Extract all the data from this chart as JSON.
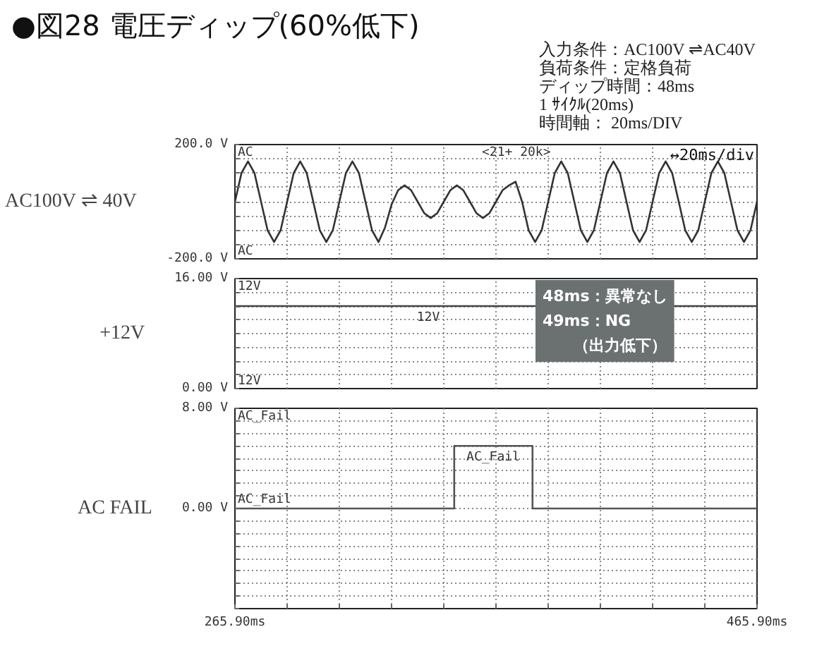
{
  "chart_data": [
    {
      "type": "line",
      "title": "●図28 電圧ディップ(60%低下)",
      "ylabel": "AC100V ⇌ 40V",
      "annotations": [
        "入力条件：AC100V ⇌AC40V",
        "負荷条件：定格負荷",
        "ディップ時間：48ms",
        "1 ｻｲｸﾙ(20ms)",
        "時間軸：  20ms/DIV",
        "AC",
        "<21+ 20k>",
        "↔20ms/div",
        "AC"
      ],
      "x": [
        265.9,
        268.4,
        270.9,
        273.4,
        275.9,
        278.4,
        280.9,
        283.4,
        285.9,
        288.4,
        290.9,
        293.4,
        295.9,
        298.4,
        300.9,
        303.4,
        305.9,
        308.4,
        310.9,
        313.4,
        315.9,
        318.4,
        320.9,
        323.4,
        325.9,
        328.4,
        330.9,
        333.4,
        335.9,
        338.4,
        340.9,
        343.4,
        345.9,
        348.4,
        350.9,
        353.4,
        355.9,
        358.4,
        360.9,
        363.4,
        365.9,
        368.4,
        370.9,
        373.4,
        375.9,
        378.4,
        380.9,
        383.4,
        385.9,
        388.4,
        390.9,
        393.4,
        395.9,
        398.4,
        400.9,
        403.4,
        405.9,
        408.4,
        410.9,
        413.4,
        415.9,
        418.4,
        420.9,
        423.4,
        425.9,
        428.4,
        430.9,
        433.4,
        435.9,
        438.4,
        440.9,
        443.4,
        445.9,
        448.4,
        450.9,
        453.4,
        455.9,
        458.4,
        460.9,
        463.4,
        465.9
      ],
      "series": [
        {
          "color": "#333333",
          "values": [
            0,
            100,
            141,
            100,
            0,
            -100,
            -141,
            -100,
            0,
            100,
            141,
            100,
            0,
            -100,
            -141,
            -100,
            0,
            100,
            141,
            100,
            0,
            -100,
            -141,
            -90,
            -10,
            40,
            57,
            40,
            0,
            -40,
            -57,
            -40,
            0,
            40,
            57,
            40,
            0,
            -40,
            -57,
            -40,
            0,
            40,
            57,
            70,
            0,
            -100,
            -141,
            -100,
            0,
            100,
            141,
            100,
            0,
            -100,
            -141,
            -100,
            0,
            100,
            141,
            100,
            0,
            -100,
            -141,
            -100,
            0,
            100,
            141,
            100,
            0,
            -100,
            -141,
            -100,
            0,
            100,
            141,
            100,
            0,
            -100,
            -141,
            -100,
            0
          ]
        }
      ],
      "xlim": [
        265.9,
        465.9
      ],
      "xticks": [
        {
          "value": 265.9,
          "label": null
        },
        {
          "value": 285.9,
          "label": null
        },
        {
          "value": 305.9,
          "label": null
        },
        {
          "value": 325.9,
          "label": null
        },
        {
          "value": 345.9,
          "label": null
        },
        {
          "value": 365.9,
          "label": null
        },
        {
          "value": 385.9,
          "label": null
        },
        {
          "value": 405.9,
          "label": null
        },
        {
          "value": 425.9,
          "label": null
        },
        {
          "value": 445.9,
          "label": null
        },
        {
          "value": 465.9,
          "label": null
        }
      ],
      "ylim": [
        -200,
        200
      ],
      "yticks": [
        {
          "value": -200,
          "label": "-200.0 V"
        },
        {
          "value": -150,
          "label": null
        },
        {
          "value": -100,
          "label": null
        },
        {
          "value": -50,
          "label": null
        },
        {
          "value": 0,
          "label": null
        },
        {
          "value": 50,
          "label": null
        },
        {
          "value": 100,
          "label": null
        },
        {
          "value": 150,
          "label": null
        },
        {
          "value": 200,
          "label": "200.0 V"
        }
      ],
      "grid": true,
      "tick_labels": "y"
    },
    {
      "type": "line",
      "ylabel": "+12V",
      "annotations": [
        "12V",
        "12V",
        "12V",
        "48ms：異常なし\n49ms：NG\n　　（出力低下）"
      ],
      "x": [
        265.9,
        465.9
      ],
      "series": [
        {
          "color": "#444444",
          "values": [
            12,
            12
          ]
        }
      ],
      "xlim": [
        265.9,
        465.9
      ],
      "xticks": [
        {
          "value": 265.9,
          "label": null
        },
        {
          "value": 285.9,
          "label": null
        },
        {
          "value": 305.9,
          "label": null
        },
        {
          "value": 325.9,
          "label": null
        },
        {
          "value": 345.9,
          "label": null
        },
        {
          "value": 365.9,
          "label": null
        },
        {
          "value": 385.9,
          "label": null
        },
        {
          "value": 405.9,
          "label": null
        },
        {
          "value": 425.9,
          "label": null
        },
        {
          "value": 445.9,
          "label": null
        },
        {
          "value": 465.9,
          "label": null
        }
      ],
      "ylim": [
        0,
        16
      ],
      "yticks": [
        {
          "value": 0,
          "label": "0.00 V"
        },
        {
          "value": 2,
          "label": null
        },
        {
          "value": 4,
          "label": null
        },
        {
          "value": 6,
          "label": null
        },
        {
          "value": 8,
          "label": null
        },
        {
          "value": 10,
          "label": null
        },
        {
          "value": 12,
          "label": null
        },
        {
          "value": 14,
          "label": null
        },
        {
          "value": 16,
          "label": "16.00 V"
        }
      ],
      "grid": true,
      "tick_labels": "y"
    },
    {
      "type": "line",
      "ylabel": "AC FAIL",
      "annotations": [
        "AC_Fail",
        "AC_Fail",
        "AC_Fail"
      ],
      "x": [
        265.9,
        349.9,
        349.9,
        379.9,
        379.9,
        465.9
      ],
      "series": [
        {
          "color": "#555555",
          "values": [
            0,
            0,
            5,
            5,
            0,
            0
          ]
        }
      ],
      "xlim": [
        265.9,
        465.9
      ],
      "xticks": [
        {
          "value": 265.9,
          "label": "265.90ms"
        },
        {
          "value": 285.9,
          "label": null
        },
        {
          "value": 305.9,
          "label": null
        },
        {
          "value": 325.9,
          "label": null
        },
        {
          "value": 345.9,
          "label": null
        },
        {
          "value": 365.9,
          "label": null
        },
        {
          "value": 385.9,
          "label": null
        },
        {
          "value": 405.9,
          "label": null
        },
        {
          "value": 425.9,
          "label": null
        },
        {
          "value": 445.9,
          "label": null
        },
        {
          "value": 465.9,
          "label": "465.90ms"
        }
      ],
      "ylim": [
        -8,
        8
      ],
      "yticks": [
        {
          "value": -8,
          "label": null
        },
        {
          "value": -7,
          "label": null
        },
        {
          "value": -6,
          "label": null
        },
        {
          "value": -5,
          "label": null
        },
        {
          "value": -4,
          "label": null
        },
        {
          "value": -3,
          "label": null
        },
        {
          "value": -2,
          "label": null
        },
        {
          "value": -1,
          "label": null
        },
        {
          "value": 0,
          "label": "0.00 V"
        },
        {
          "value": 1,
          "label": null
        },
        {
          "value": 2,
          "label": null
        },
        {
          "value": 3,
          "label": null
        },
        {
          "value": 4,
          "label": null
        },
        {
          "value": 5,
          "label": null
        },
        {
          "value": 6,
          "label": null
        },
        {
          "value": 7,
          "label": null
        },
        {
          "value": 8,
          "label": "8.00 V"
        }
      ],
      "grid": true
    }
  ]
}
